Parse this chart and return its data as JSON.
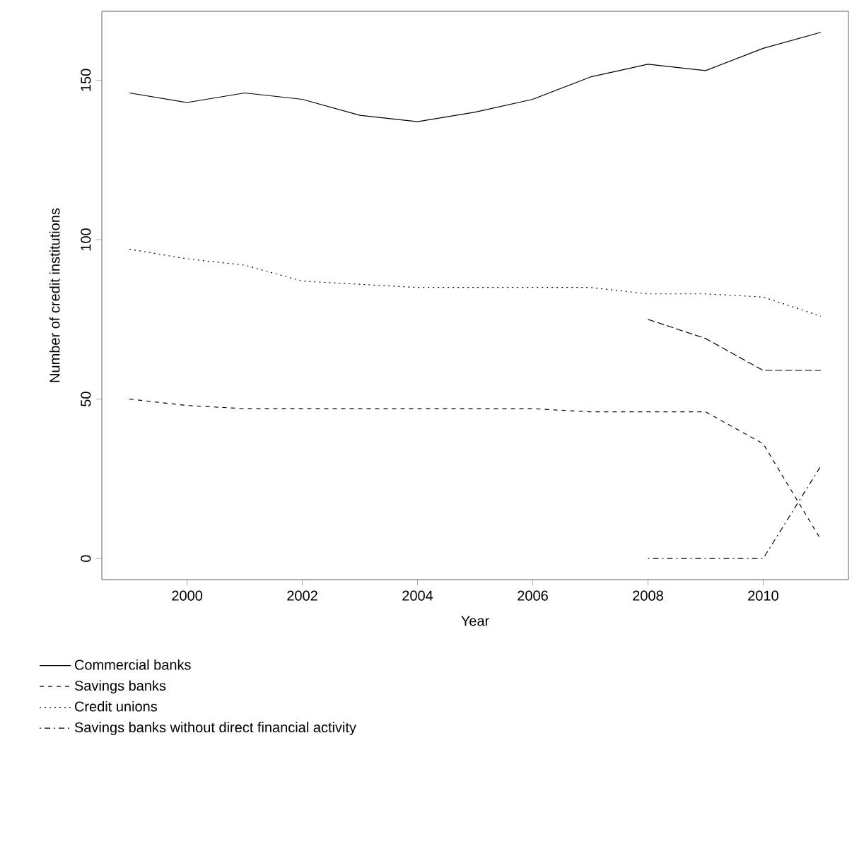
{
  "chart_data": {
    "type": "line",
    "xlabel": "Year",
    "ylabel": "Number of credit institutions",
    "x": [
      1999,
      2000,
      2001,
      2002,
      2003,
      2004,
      2005,
      2006,
      2007,
      2008,
      2009,
      2010,
      2011
    ],
    "series": [
      {
        "name": "Commercial banks",
        "color": "#000000",
        "line_style": "solid",
        "values": [
          146,
          143,
          146,
          144,
          139,
          137,
          140,
          144,
          151,
          155,
          153,
          160,
          165
        ]
      },
      {
        "name": "Savings banks",
        "color": "#000000",
        "line_style": "dashed",
        "values": [
          50,
          48,
          47,
          47,
          47,
          47,
          47,
          47,
          46,
          46,
          46,
          36,
          6
        ]
      },
      {
        "name": "Credit unions",
        "color": "#000000",
        "line_style": "dotted",
        "values": [
          97,
          94,
          92,
          87,
          86,
          85,
          85,
          85,
          85,
          83,
          83,
          82,
          76
        ]
      },
      {
        "name": "Savings banks without direct financial activity",
        "color": "#000000",
        "line_style": "dashdot",
        "values": [
          null,
          null,
          null,
          null,
          null,
          null,
          null,
          null,
          null,
          0,
          0,
          0,
          29
        ]
      },
      {
        "color": "#000000",
        "line_style": "longdash",
        "values": [
          null,
          null,
          null,
          null,
          null,
          null,
          null,
          null,
          null,
          75,
          69,
          59,
          59
        ]
      }
    ],
    "xlim": [
      1998.52,
      2011.48
    ],
    "ylim": [
      -6.6,
      171.6
    ],
    "xticks": [
      2000,
      2002,
      2004,
      2006,
      2008,
      2010
    ],
    "yticks": [
      0,
      50,
      100,
      150
    ],
    "grid": false,
    "legend": "bottom left",
    "marker": "none"
  }
}
